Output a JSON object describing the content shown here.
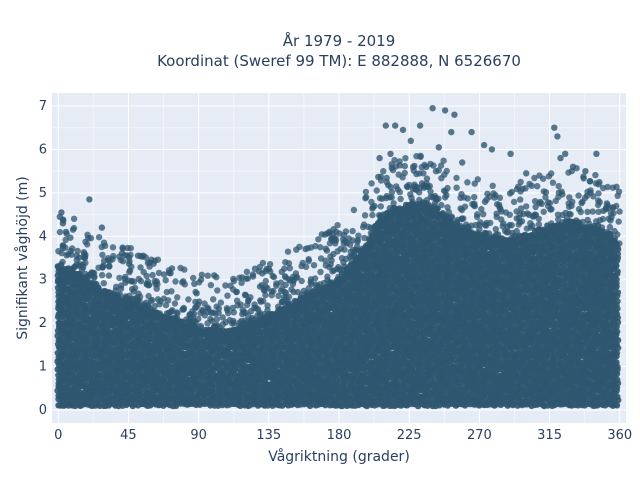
{
  "chart_data": {
    "type": "scatter",
    "title": [
      "År 1979 - 2019",
      "Koordinat (Sweref 99 TM): E 882888, N 6526670"
    ],
    "xlabel": "Vågriktning (grader)",
    "ylabel": "Signifikant våghöjd (m)",
    "xlim": [
      -4,
      364
    ],
    "ylim": [
      -0.3,
      7.3
    ],
    "xticks": [
      0,
      45,
      90,
      135,
      180,
      225,
      270,
      315,
      360
    ],
    "yticks": [
      0,
      1,
      2,
      3,
      4,
      5,
      6,
      7
    ],
    "grid": true,
    "marker_color": "#2f5770",
    "plot_background": "#e5ecf6",
    "envelope": {
      "x": [
        0,
        10,
        20,
        30,
        45,
        60,
        75,
        90,
        105,
        120,
        135,
        150,
        165,
        180,
        195,
        205,
        215,
        225,
        235,
        245,
        255,
        270,
        285,
        300,
        315,
        330,
        345,
        360
      ],
      "y_max": [
        3.6,
        3.5,
        3.2,
        3.0,
        2.8,
        2.55,
        2.35,
        2.15,
        2.1,
        2.2,
        2.45,
        2.75,
        3.0,
        3.3,
        3.9,
        4.6,
        4.9,
        5.0,
        5.0,
        4.85,
        4.5,
        4.3,
        4.2,
        4.3,
        4.5,
        4.6,
        4.5,
        4.1
      ]
    },
    "outliers": [
      {
        "x": 20,
        "y": 4.85
      },
      {
        "x": 28,
        "y": 4.2
      },
      {
        "x": 2,
        "y": 4.55
      },
      {
        "x": 1,
        "y": 4.45
      },
      {
        "x": 3,
        "y": 4.3
      },
      {
        "x": 5,
        "y": 4.1
      },
      {
        "x": 100,
        "y": 3.1
      },
      {
        "x": 72,
        "y": 3.15
      },
      {
        "x": 176,
        "y": 4.05
      },
      {
        "x": 178,
        "y": 3.9
      },
      {
        "x": 206,
        "y": 5.8
      },
      {
        "x": 210,
        "y": 6.55
      },
      {
        "x": 216,
        "y": 6.55
      },
      {
        "x": 221,
        "y": 6.45
      },
      {
        "x": 226,
        "y": 6.2
      },
      {
        "x": 232,
        "y": 6.55
      },
      {
        "x": 240,
        "y": 6.95
      },
      {
        "x": 248,
        "y": 6.9
      },
      {
        "x": 254,
        "y": 6.8
      },
      {
        "x": 252,
        "y": 6.4
      },
      {
        "x": 265,
        "y": 6.4
      },
      {
        "x": 273,
        "y": 6.1
      },
      {
        "x": 278,
        "y": 6.0
      },
      {
        "x": 290,
        "y": 5.9
      },
      {
        "x": 318,
        "y": 6.5
      },
      {
        "x": 320,
        "y": 6.3
      },
      {
        "x": 325,
        "y": 5.9
      },
      {
        "x": 322,
        "y": 5.8
      },
      {
        "x": 345,
        "y": 5.9
      },
      {
        "x": 330,
        "y": 5.6
      },
      {
        "x": 213,
        "y": 5.9
      },
      {
        "x": 236,
        "y": 5.6
      },
      {
        "x": 244,
        "y": 6.05
      },
      {
        "x": 259,
        "y": 5.7
      },
      {
        "x": 300,
        "y": 5.45
      },
      {
        "x": 338,
        "y": 5.5
      }
    ]
  }
}
